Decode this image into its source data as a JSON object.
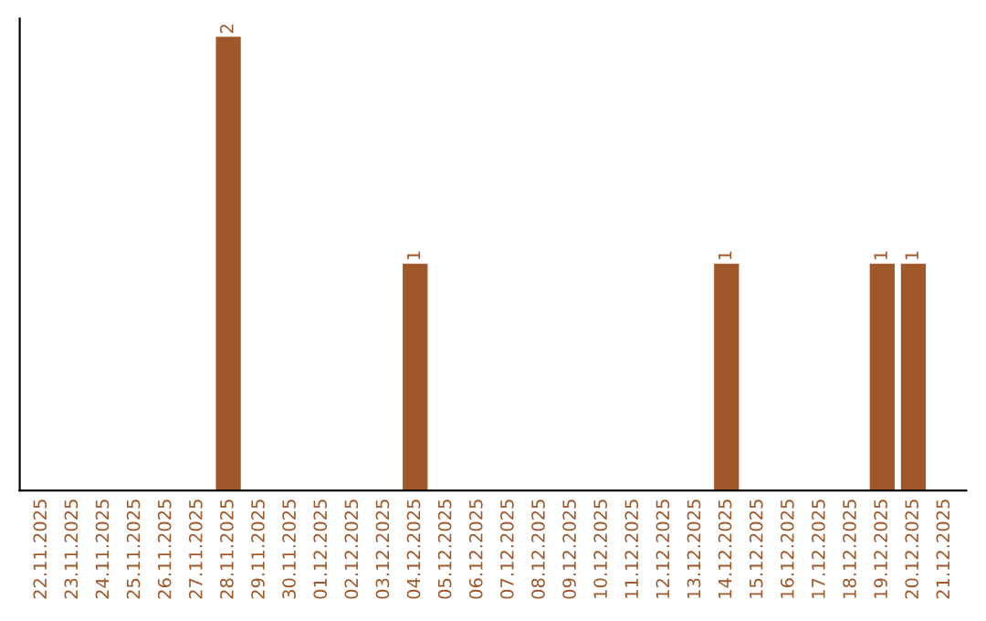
{
  "chart_data": {
    "type": "bar",
    "categories": [
      "22.11.2025",
      "23.11.2025",
      "24.11.2025",
      "25.11.2025",
      "26.11.2025",
      "27.11.2025",
      "28.11.2025",
      "29.11.2025",
      "30.11.2025",
      "01.12.2025",
      "02.12.2025",
      "03.12.2025",
      "04.12.2025",
      "05.12.2025",
      "06.12.2025",
      "07.12.2025",
      "08.12.2025",
      "09.12.2025",
      "10.12.2025",
      "11.12.2025",
      "12.12.2025",
      "13.12.2025",
      "14.12.2025",
      "15.12.2025",
      "16.12.2025",
      "17.12.2025",
      "18.12.2025",
      "19.12.2025",
      "20.12.2025",
      "21.12.2025"
    ],
    "values": [
      0,
      0,
      0,
      0,
      0,
      0,
      2,
      0,
      0,
      0,
      0,
      0,
      1,
      0,
      0,
      0,
      0,
      0,
      0,
      0,
      0,
      0,
      1,
      0,
      0,
      0,
      0,
      1,
      1,
      0
    ],
    "value_labels": [
      null,
      null,
      null,
      null,
      null,
      null,
      "2",
      null,
      null,
      null,
      null,
      null,
      "1",
      null,
      null,
      null,
      null,
      null,
      null,
      null,
      null,
      null,
      "1",
      null,
      null,
      null,
      null,
      "1",
      "1",
      null
    ],
    "color": "#a0582a",
    "tick_labels": "x",
    "grid": false,
    "legend": false
  }
}
